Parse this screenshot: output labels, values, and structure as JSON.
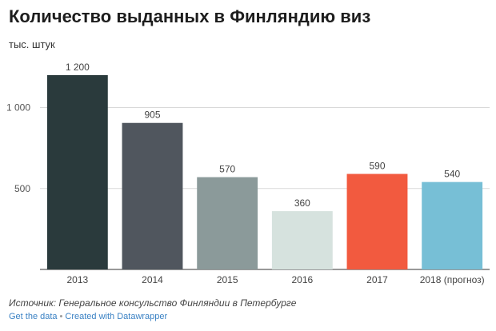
{
  "title": "Количество выданных в Финляндию виз",
  "subtitle": "тыс. штук",
  "source": "Источник: Генеральное консульство Финляндии в Петербурге",
  "footer": {
    "get_data": "Get the data",
    "separator": "•",
    "created_with": "Created with Datawrapper"
  },
  "chart_data": {
    "type": "bar",
    "categories": [
      "2013",
      "2014",
      "2015",
      "2016",
      "2017",
      "2018 (прогноз)"
    ],
    "values": [
      1200,
      905,
      570,
      360,
      590,
      540
    ],
    "value_labels": [
      "1 200",
      "905",
      "570",
      "360",
      "590",
      "540"
    ],
    "colors": [
      "#2a3a3c",
      "#50565e",
      "#8b9a9a",
      "#d6e2de",
      "#f25a3f",
      "#77bfd6"
    ],
    "yticks": [
      500,
      1000
    ],
    "ytick_labels": [
      "500",
      "1 000"
    ],
    "ylim": [
      0,
      1200
    ],
    "grid": true,
    "xlabel": "",
    "ylabel": ""
  }
}
